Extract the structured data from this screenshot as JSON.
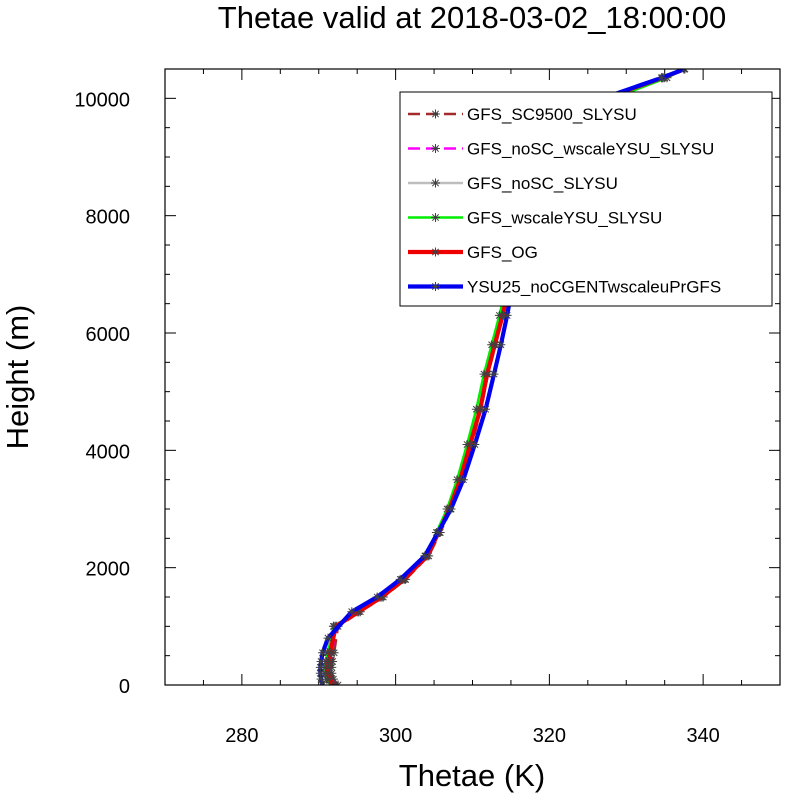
{
  "chart_data": {
    "type": "line",
    "title": "Thetae valid at 2018-03-02_18:00:00",
    "xlabel": "Thetae (K)",
    "ylabel": "Height (m)",
    "xlim": [
      270,
      350
    ],
    "ylim": [
      0,
      10500
    ],
    "xticks": [
      280,
      300,
      320,
      340
    ],
    "yticks": [
      0,
      2000,
      4000,
      6000,
      8000,
      10000
    ],
    "xtick_labels": [
      "280",
      "300",
      "320",
      "340"
    ],
    "ytick_labels": [
      "0",
      "2000",
      "4000",
      "6000",
      "8000",
      "10000"
    ],
    "legend_position": "top-right",
    "grid": false,
    "series": [
      {
        "name": "GFS_SC9500_SLYSU",
        "color": "#a52a2a",
        "style": "dashed",
        "x": [
          292.5,
          291.9,
          291.7,
          291.7,
          291.8,
          292.0,
          292.5,
          295.4,
          298.4,
          301.3,
          304.3,
          305.8,
          307.2,
          308.6,
          309.9,
          311.1,
          312.0,
          312.9,
          313.9,
          314.7,
          315.4,
          316.0,
          316.6,
          317.2,
          317.8,
          318.5,
          320.7,
          327.0,
          334.6,
          337.6
        ],
        "y": [
          0,
          100,
          200,
          300,
          400,
          550,
          1000,
          1250,
          1500,
          1800,
          2200,
          2600,
          3000,
          3500,
          4100,
          4700,
          5300,
          5800,
          6300,
          6800,
          7300,
          7800,
          8200,
          8600,
          8900,
          9300,
          9700,
          10000,
          10350,
          10500
        ]
      },
      {
        "name": "GFS_noSC_wscaleYSU_SLYSU",
        "color": "#ff00ff",
        "style": "dashed",
        "x": [
          292.2,
          291.6,
          291.4,
          291.4,
          291.5,
          291.7,
          292.3,
          295.2,
          298.2,
          301.1,
          304.1,
          305.7,
          307.1,
          308.5,
          309.8,
          311.1,
          312.0,
          313.0,
          314.0,
          314.8,
          315.5,
          316.1,
          316.7,
          317.3,
          317.9,
          318.6,
          321.0,
          327.3,
          334.8,
          337.6
        ],
        "y": [
          0,
          100,
          200,
          300,
          400,
          550,
          1000,
          1250,
          1500,
          1800,
          2200,
          2600,
          3000,
          3500,
          4100,
          4700,
          5300,
          5800,
          6300,
          6800,
          7300,
          7800,
          8200,
          8600,
          8900,
          9300,
          9700,
          10000,
          10350,
          10500
        ]
      },
      {
        "name": "GFS_noSC_SLYSU",
        "color": "#bebebe",
        "style": "solid",
        "x": [
          291.5,
          291.0,
          290.8,
          290.8,
          290.9,
          291.1,
          291.9,
          295.0,
          298.0,
          300.9,
          304.0,
          305.5,
          306.9,
          308.3,
          309.6,
          310.9,
          311.8,
          312.8,
          313.8,
          314.7,
          315.4,
          316.0,
          316.6,
          317.2,
          317.9,
          318.7,
          321.5,
          327.6,
          335.0,
          337.5
        ],
        "y": [
          0,
          100,
          200,
          300,
          400,
          550,
          1000,
          1250,
          1500,
          1800,
          2200,
          2600,
          3000,
          3500,
          4100,
          4700,
          5300,
          5800,
          6300,
          6800,
          7300,
          7800,
          8200,
          8600,
          8900,
          9300,
          9700,
          10000,
          10350,
          10500
        ]
      },
      {
        "name": "GFS_wscaleYSU_SLYSU",
        "color": "#00ee00",
        "style": "solid",
        "x": [
          291.6,
          291.1,
          290.9,
          290.9,
          291.0,
          291.2,
          292.0,
          295.0,
          297.9,
          300.8,
          303.9,
          305.3,
          306.7,
          308.0,
          309.3,
          310.5,
          311.5,
          312.5,
          313.5,
          314.4,
          315.1,
          315.8,
          316.5,
          317.1,
          317.8,
          318.7,
          321.8,
          328.2,
          335.3,
          337.5
        ],
        "y": [
          0,
          100,
          200,
          300,
          400,
          550,
          1000,
          1250,
          1500,
          1800,
          2200,
          2600,
          3000,
          3500,
          4100,
          4700,
          5300,
          5800,
          6300,
          6800,
          7300,
          7800,
          8200,
          8600,
          8900,
          9300,
          9700,
          10000,
          10350,
          10500
        ]
      },
      {
        "name": "GFS_OG",
        "color": "#ee0000",
        "style": "solid",
        "x": [
          292.0,
          291.4,
          291.2,
          291.2,
          291.3,
          291.5,
          292.2,
          295.2,
          298.2,
          301.1,
          304.1,
          305.6,
          307.0,
          308.4,
          309.7,
          311.0,
          311.9,
          312.9,
          313.9,
          314.8,
          315.5,
          316.1,
          316.7,
          317.3,
          317.9,
          318.6,
          321.0,
          327.2,
          334.7,
          337.6
        ],
        "y": [
          0,
          100,
          200,
          300,
          400,
          550,
          1000,
          1250,
          1500,
          1800,
          2200,
          2600,
          3000,
          3500,
          4100,
          4700,
          5300,
          5800,
          6300,
          6800,
          7300,
          7800,
          8200,
          8600,
          8900,
          9300,
          9700,
          10000,
          10350,
          10500
        ]
      },
      {
        "name": "YSU25_noCGENTwscaleuPrGFS",
        "color": "#0000ee",
        "style": "solid",
        "x": [
          290.5,
          290.3,
          290.2,
          290.2,
          290.3,
          290.5,
          291.2,
          294.3,
          297.6,
          300.6,
          303.8,
          305.5,
          307.2,
          308.8,
          310.3,
          311.7,
          312.8,
          313.7,
          314.5,
          315.2,
          315.8,
          316.3,
          316.9,
          317.4,
          318.0,
          318.6,
          320.6,
          326.9,
          334.6,
          337.6
        ],
        "y": [
          0,
          100,
          200,
          300,
          400,
          550,
          800,
          1250,
          1500,
          1800,
          2200,
          2600,
          3000,
          3500,
          4100,
          4700,
          5300,
          5800,
          6300,
          6800,
          7300,
          7800,
          8200,
          8600,
          8900,
          9300,
          9700,
          10000,
          10350,
          10500
        ]
      }
    ]
  }
}
